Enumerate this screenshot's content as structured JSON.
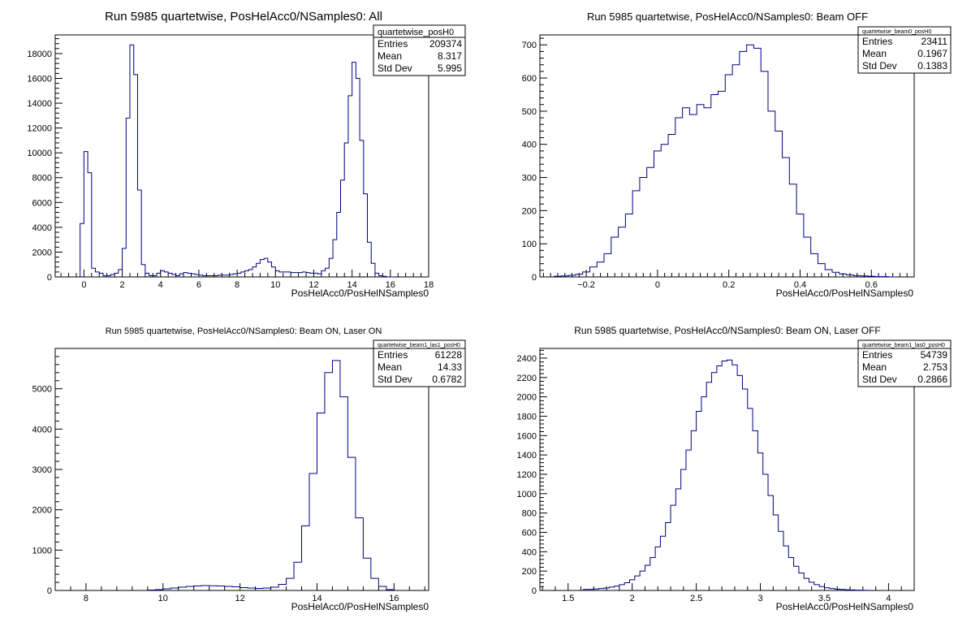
{
  "chart_data": [
    {
      "type": "bar",
      "title": "Run 5985 quartetwise, PosHelAcc0/NSamples0: All",
      "xlabel": "PosHelAcc0/PosHelNSamples0",
      "xlim": [
        -1.5,
        18
      ],
      "ylim": [
        0,
        19500
      ],
      "xticks": [
        0,
        2,
        4,
        6,
        8,
        10,
        12,
        14,
        16,
        18
      ],
      "yticks": [
        0,
        2000,
        4000,
        6000,
        8000,
        10000,
        12000,
        14000,
        16000,
        18000
      ],
      "xtick_labels": [
        "0",
        "2",
        "4",
        "6",
        "8",
        "10",
        "12",
        "14",
        "16",
        "18"
      ],
      "ytick_labels": [
        "0",
        "2000",
        "4000",
        "6000",
        "8000",
        "10000",
        "12000",
        "14000",
        "16000",
        "18000"
      ],
      "xminor": 0.4,
      "line_color": "#000080",
      "stats": {
        "name": "quartetwise_posH0",
        "rows": [
          {
            "label": "Entries",
            "value": "209374"
          },
          {
            "label": "Mean",
            "value": "8.317"
          },
          {
            "label": "Std Dev",
            "value": "5.995"
          }
        ]
      },
      "peaks": [
        {
          "center": 0.0,
          "width": 0.06,
          "amp": 1
        },
        {
          "center": 2.7,
          "width": 0.3,
          "amp": 1
        },
        {
          "center": 14.3,
          "width": 0.6,
          "amp": 1
        }
      ],
      "bins_x": [
        -0.1,
        0.1,
        0.3,
        0.5,
        0.7,
        0.9,
        1.1,
        1.3,
        1.5,
        1.7,
        1.9,
        2.1,
        2.3,
        2.5,
        2.7,
        2.9,
        3.1,
        3.3,
        3.5,
        3.7,
        3.9,
        4.1,
        4.3,
        4.5,
        4.7,
        4.9,
        5.1,
        5.3,
        5.5,
        5.7,
        5.9,
        6.1,
        6.3,
        6.5,
        6.7,
        6.9,
        7.1,
        7.3,
        7.5,
        7.7,
        7.9,
        8.1,
        8.3,
        8.5,
        8.7,
        8.9,
        9.1,
        9.3,
        9.5,
        9.7,
        9.9,
        10.1,
        10.3,
        10.5,
        10.7,
        10.9,
        11.1,
        11.3,
        11.5,
        11.7,
        11.9,
        12.1,
        12.3,
        12.5,
        12.7,
        12.9,
        13.1,
        13.3,
        13.5,
        13.7,
        13.9,
        14.1,
        14.3,
        14.5,
        14.7,
        14.9,
        15.1,
        15.3,
        15.5,
        15.7,
        15.9,
        16.1
      ],
      "values": [
        4300,
        10100,
        8400,
        700,
        400,
        300,
        100,
        100,
        200,
        300,
        600,
        2300,
        12800,
        18700,
        16300,
        7000,
        1000,
        300,
        100,
        100,
        300,
        500,
        400,
        300,
        200,
        100,
        250,
        350,
        300,
        250,
        200,
        150,
        100,
        100,
        100,
        100,
        150,
        150,
        150,
        200,
        250,
        300,
        400,
        500,
        600,
        800,
        1100,
        1400,
        1500,
        1200,
        800,
        500,
        400,
        400,
        400,
        350,
        350,
        350,
        400,
        350,
        300,
        300,
        250,
        500,
        700,
        1500,
        3000,
        5200,
        7800,
        10800,
        14600,
        17300,
        16000,
        11000,
        6700,
        2800,
        1100,
        300,
        100,
        50,
        0
      ]
    },
    {
      "type": "bar",
      "title": "Run 5985 quartetwise, PosHelAcc0/NSamples0: Beam OFF",
      "xlabel": "PosHelAcc0/PosHelNSamples0",
      "xlim": [
        -0.33,
        0.72
      ],
      "ylim": [
        0,
        730
      ],
      "xticks": [
        -0.2,
        0,
        0.2,
        0.4,
        0.6
      ],
      "yticks": [
        0,
        100,
        200,
        300,
        400,
        500,
        600,
        700
      ],
      "xtick_labels": [
        "−0.2",
        "0",
        "0.2",
        "0.4",
        "0.6"
      ],
      "ytick_labels": [
        "0",
        "100",
        "200",
        "300",
        "400",
        "500",
        "600",
        "700"
      ],
      "xminor": 0.02,
      "line_color": "#000080",
      "stats": {
        "name": "quartetwise_beam0_posH0",
        "rows": [
          {
            "label": "Entries",
            "value": "23411"
          },
          {
            "label": "Mean",
            "value": "0.1967"
          },
          {
            "label": "Std Dev",
            "value": "0.1383"
          }
        ]
      },
      "bins_x": [
        -0.28,
        -0.26,
        -0.24,
        -0.22,
        -0.2,
        -0.18,
        -0.16,
        -0.14,
        -0.12,
        -0.1,
        -0.08,
        -0.06,
        -0.04,
        -0.02,
        0.0,
        0.02,
        0.04,
        0.06,
        0.08,
        0.1,
        0.12,
        0.14,
        0.16,
        0.18,
        0.2,
        0.22,
        0.24,
        0.26,
        0.28,
        0.3,
        0.32,
        0.34,
        0.36,
        0.38,
        0.4,
        0.42,
        0.44,
        0.46,
        0.48,
        0.5,
        0.52,
        0.54,
        0.56,
        0.58,
        0.6,
        0.62,
        0.64,
        0.66
      ],
      "values": [
        2,
        3,
        5,
        8,
        15,
        30,
        45,
        70,
        120,
        150,
        190,
        260,
        300,
        330,
        380,
        400,
        430,
        480,
        510,
        490,
        520,
        510,
        550,
        560,
        610,
        640,
        680,
        700,
        690,
        620,
        500,
        440,
        360,
        280,
        190,
        120,
        70,
        40,
        22,
        14,
        9,
        6,
        4,
        3,
        2,
        1,
        1,
        0
      ]
    },
    {
      "type": "bar",
      "title": "Run 5985 quartetwise, PosHelAcc0/NSamples0: Beam ON, Laser ON",
      "xlabel": "PosHelAcc0/PosHelNSamples0",
      "xlim": [
        7.2,
        16.9
      ],
      "ylim": [
        0,
        6000
      ],
      "xticks": [
        8,
        10,
        12,
        14,
        16
      ],
      "yticks": [
        0,
        1000,
        2000,
        3000,
        4000,
        5000
      ],
      "xtick_labels": [
        "8",
        "10",
        "12",
        "14",
        "16"
      ],
      "ytick_labels": [
        "0",
        "1000",
        "2000",
        "3000",
        "4000",
        "5000"
      ],
      "xminor": 0.4,
      "line_color": "#000080",
      "stats": {
        "name": "quartetwise_beam1_las1_posH0",
        "rows": [
          {
            "label": "Entries",
            "value": "61228"
          },
          {
            "label": "Mean",
            "value": "14.33"
          },
          {
            "label": "Std Dev",
            "value": "0.6782"
          }
        ]
      },
      "bins_x": [
        9.7,
        9.9,
        10.1,
        10.3,
        10.5,
        10.7,
        10.9,
        11.1,
        11.3,
        11.5,
        11.7,
        11.9,
        12.1,
        12.3,
        12.5,
        12.7,
        12.9,
        13.1,
        13.3,
        13.5,
        13.7,
        13.9,
        14.1,
        14.3,
        14.5,
        14.7,
        14.9,
        15.1,
        15.3,
        15.5,
        15.7,
        15.9
      ],
      "values": [
        10,
        20,
        40,
        60,
        80,
        100,
        110,
        120,
        115,
        110,
        100,
        90,
        70,
        60,
        50,
        60,
        80,
        150,
        300,
        700,
        1600,
        2900,
        4400,
        5400,
        5700,
        4800,
        3300,
        1800,
        800,
        300,
        100,
        20
      ]
    },
    {
      "type": "bar",
      "title": "Run 5985 quartetwise, PosHelAcc0/NSamples0: Beam ON, Laser OFF",
      "xlabel": "PosHelAcc0/PosHelNSamples0",
      "xlim": [
        1.28,
        4.2
      ],
      "ylim": [
        0,
        2500
      ],
      "xticks": [
        1.5,
        2,
        2.5,
        3,
        3.5,
        4
      ],
      "yticks": [
        0,
        200,
        400,
        600,
        800,
        1000,
        1200,
        1400,
        1600,
        1800,
        2000,
        2200,
        2400
      ],
      "xtick_labels": [
        "1.5",
        "2",
        "2.5",
        "3",
        "3.5",
        "4"
      ],
      "ytick_labels": [
        "0",
        "200",
        "400",
        "600",
        "800",
        "1000",
        "1200",
        "1400",
        "1600",
        "1800",
        "2000",
        "2200",
        "2400"
      ],
      "xminor": 0.1,
      "line_color": "#000080",
      "stats": {
        "name": "quartetwise_beam1_las0_posH0",
        "rows": [
          {
            "label": "Entries",
            "value": "54739"
          },
          {
            "label": "Mean",
            "value": "2.753"
          },
          {
            "label": "Std Dev",
            "value": "0.2866"
          }
        ]
      },
      "bins_x": [
        1.64,
        1.68,
        1.72,
        1.76,
        1.8,
        1.84,
        1.88,
        1.92,
        1.96,
        2.0,
        2.04,
        2.08,
        2.12,
        2.16,
        2.2,
        2.24,
        2.28,
        2.32,
        2.36,
        2.4,
        2.44,
        2.48,
        2.52,
        2.56,
        2.6,
        2.64,
        2.68,
        2.72,
        2.76,
        2.8,
        2.84,
        2.88,
        2.92,
        2.96,
        3.0,
        3.04,
        3.08,
        3.12,
        3.16,
        3.2,
        3.24,
        3.28,
        3.32,
        3.36,
        3.4,
        3.44,
        3.48,
        3.52,
        3.56,
        3.6,
        3.64,
        3.68,
        3.72,
        3.76,
        3.8,
        3.84
      ],
      "values": [
        10,
        12,
        15,
        20,
        25,
        35,
        45,
        60,
        80,
        110,
        150,
        200,
        260,
        340,
        450,
        560,
        700,
        880,
        1050,
        1250,
        1450,
        1650,
        1850,
        2000,
        2150,
        2250,
        2320,
        2370,
        2380,
        2330,
        2220,
        2080,
        1880,
        1650,
        1420,
        1200,
        980,
        780,
        610,
        460,
        340,
        250,
        180,
        125,
        85,
        60,
        40,
        28,
        20,
        14,
        10,
        7,
        5,
        3,
        2,
        1
      ]
    }
  ]
}
